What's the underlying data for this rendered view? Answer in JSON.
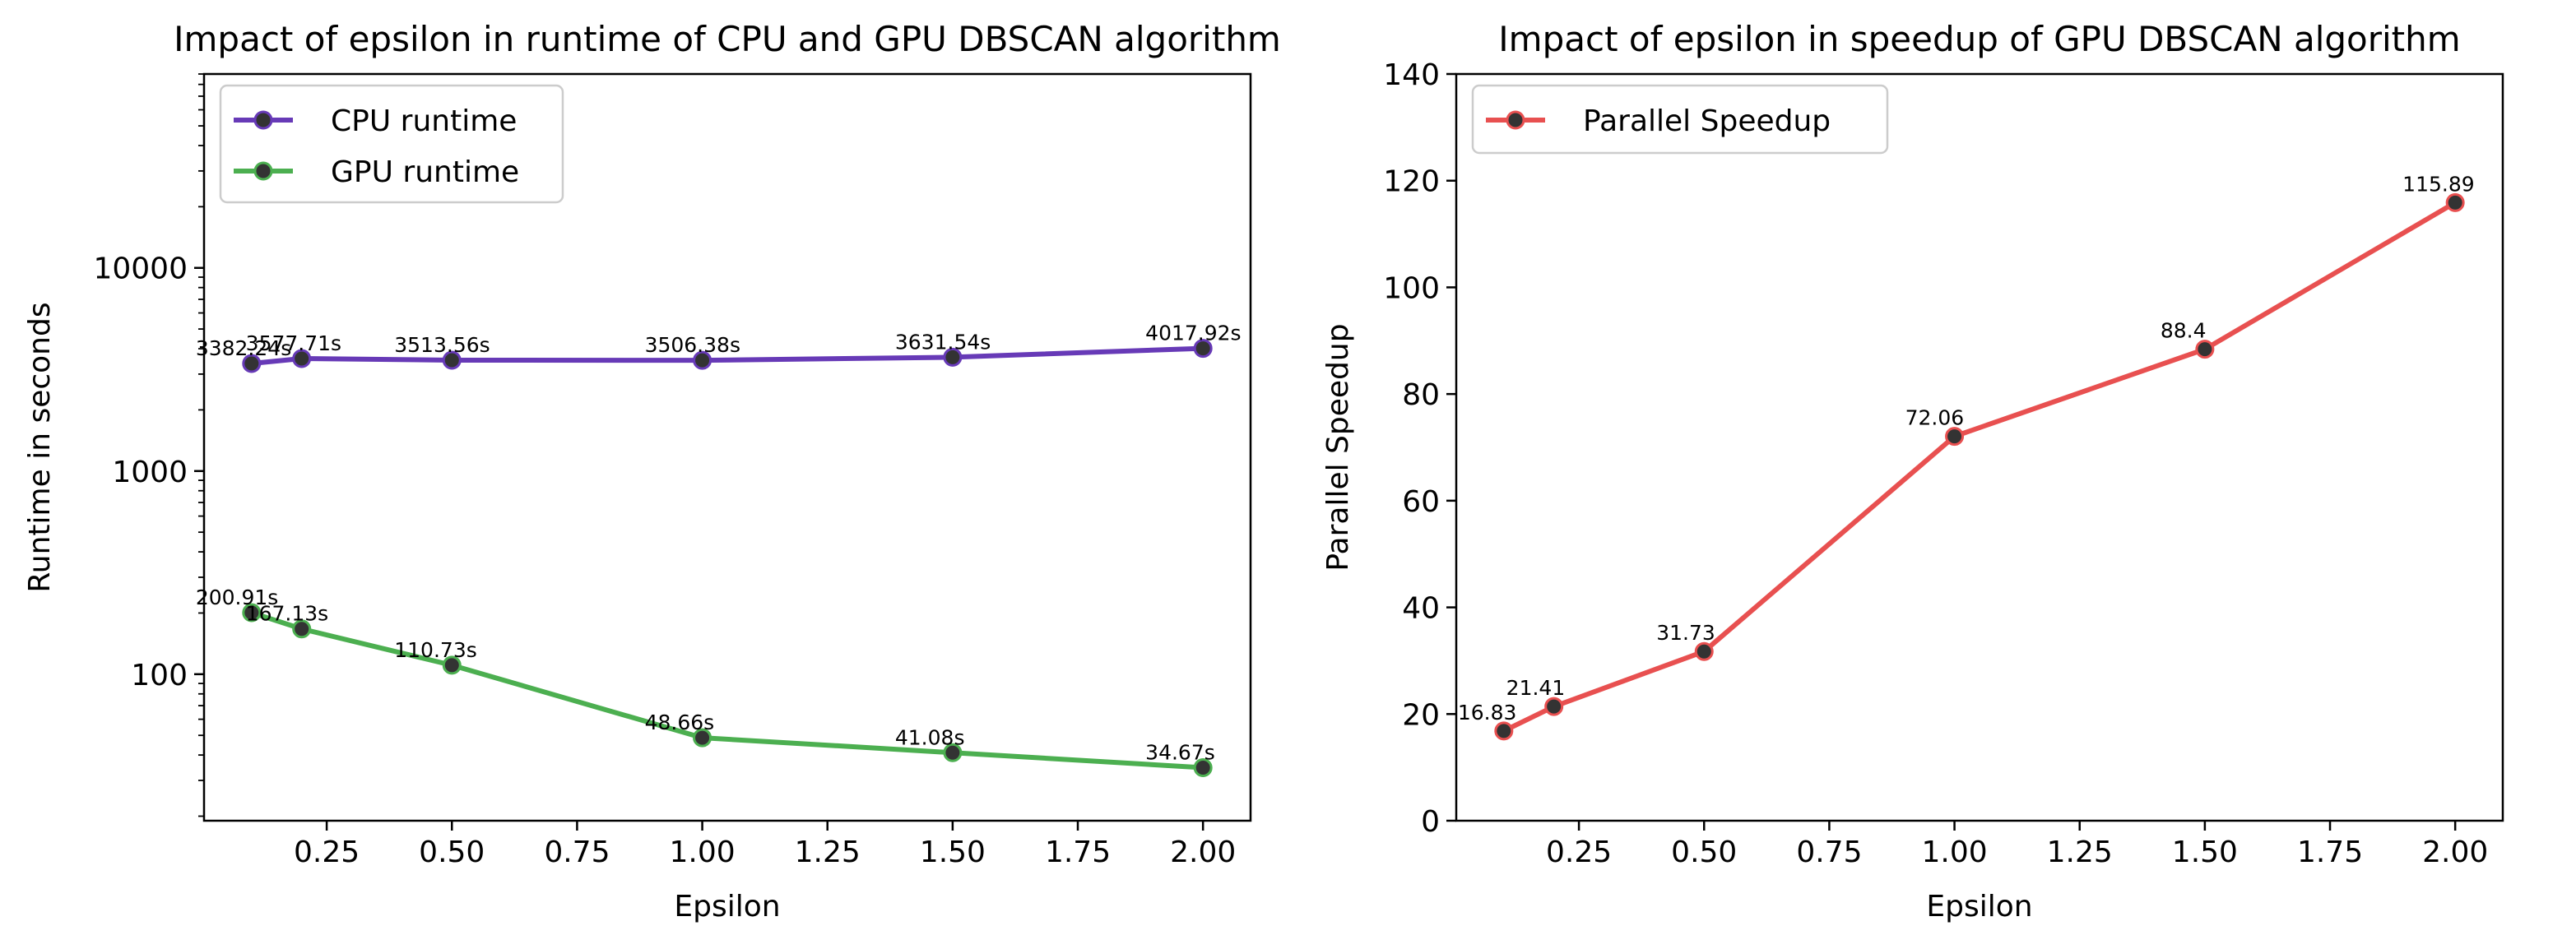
{
  "chart_data": [
    {
      "type": "line",
      "title": "Impact of epsilon in runtime of CPU and GPU DBSCAN algorithm",
      "xlabel": "Epsilon",
      "ylabel": "Runtime in seconds",
      "yscale": "log",
      "xlim": [
        0.005,
        2.095
      ],
      "ylim": [
        19,
        90000
      ],
      "x": [
        0.1,
        0.2,
        0.5,
        1.0,
        1.5,
        2.0
      ],
      "xticks": [
        {
          "value": 0.25,
          "label": "0.25"
        },
        {
          "value": 0.5,
          "label": "0.50"
        },
        {
          "value": 0.75,
          "label": "0.75"
        },
        {
          "value": 1.0,
          "label": "1.00"
        },
        {
          "value": 1.25,
          "label": "1.25"
        },
        {
          "value": 1.5,
          "label": "1.50"
        },
        {
          "value": 1.75,
          "label": "1.75"
        },
        {
          "value": 2.0,
          "label": "2.00"
        }
      ],
      "yticks": [
        {
          "value": 100,
          "label": "100"
        },
        {
          "value": 1000,
          "label": "1000"
        },
        {
          "value": 10000,
          "label": "10000"
        }
      ],
      "grid": false,
      "legend": "upper left",
      "series": [
        {
          "name": "CPU runtime",
          "color": "#673ab7",
          "values": [
            3382.24,
            3577.71,
            3513.56,
            3506.38,
            3631.54,
            4017.92
          ],
          "labels": [
            "3382.24s",
            "3577.71s",
            "3513.56s",
            "3506.38s",
            "3631.54s",
            "4017.92s"
          ]
        },
        {
          "name": "GPU runtime",
          "color": "#4caf50",
          "values": [
            200.91,
            167.13,
            110.73,
            48.66,
            41.08,
            34.67
          ],
          "labels": [
            "200.91s",
            "167.13s",
            "110.73s",
            "48.66s",
            "41.08s",
            "34.67s"
          ]
        }
      ]
    },
    {
      "type": "line",
      "title": "Impact of epsilon in speedup of GPU DBSCAN algorithm",
      "xlabel": "Epsilon",
      "ylabel": "Parallel Speedup",
      "yscale": "linear",
      "xlim": [
        0.005,
        2.095
      ],
      "ylim": [
        0,
        140
      ],
      "x": [
        0.1,
        0.2,
        0.5,
        1.0,
        1.5,
        2.0
      ],
      "xticks": [
        {
          "value": 0.25,
          "label": "0.25"
        },
        {
          "value": 0.5,
          "label": "0.50"
        },
        {
          "value": 0.75,
          "label": "0.75"
        },
        {
          "value": 1.0,
          "label": "1.00"
        },
        {
          "value": 1.25,
          "label": "1.25"
        },
        {
          "value": 1.5,
          "label": "1.50"
        },
        {
          "value": 1.75,
          "label": "1.75"
        },
        {
          "value": 2.0,
          "label": "2.00"
        }
      ],
      "yticks": [
        {
          "value": 0,
          "label": "0"
        },
        {
          "value": 20,
          "label": "20"
        },
        {
          "value": 40,
          "label": "40"
        },
        {
          "value": 60,
          "label": "60"
        },
        {
          "value": 80,
          "label": "80"
        },
        {
          "value": 100,
          "label": "100"
        },
        {
          "value": 120,
          "label": "120"
        },
        {
          "value": 140,
          "label": "140"
        }
      ],
      "grid": false,
      "legend": "upper left",
      "series": [
        {
          "name": "Parallel Speedup",
          "color": "#e85050",
          "values": [
            16.83,
            21.41,
            31.73,
            72.06,
            88.4,
            115.89
          ],
          "labels": [
            "16.83",
            "21.41",
            "31.73",
            "72.06",
            "88.4",
            "115.89"
          ]
        }
      ]
    }
  ]
}
